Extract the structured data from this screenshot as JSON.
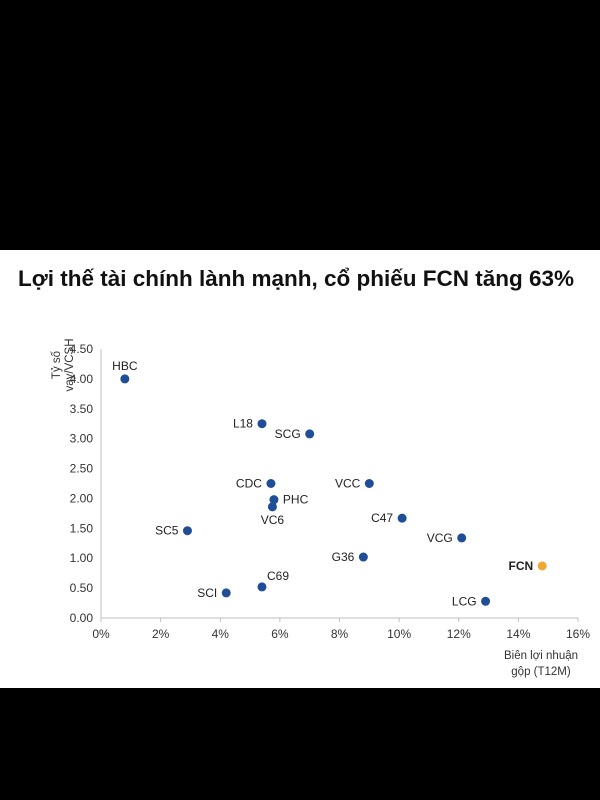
{
  "title": "Lợi thế tài chính lành mạnh, cổ phiếu FCN tăng 63%",
  "colors": {
    "point": "#1f4e97",
    "highlight": "#f0a830",
    "grid": "#d9d9d9"
  },
  "chart_data": {
    "type": "scatter",
    "title": "Lợi thế tài chính lành mạnh, cổ phiếu FCN tăng 63%",
    "xlabel": [
      "Biên lợi nhuận",
      "gộp (T12M)"
    ],
    "ylabel": [
      "Tỷ số",
      "vay/VCSH"
    ],
    "xlim": [
      0,
      16
    ],
    "ylim": [
      0,
      4.5
    ],
    "xticks": [
      0,
      2,
      4,
      6,
      8,
      10,
      12,
      14,
      16
    ],
    "xtick_labels": [
      "0%",
      "2%",
      "4%",
      "6%",
      "8%",
      "10%",
      "12%",
      "14%",
      "16%"
    ],
    "yticks": [
      0,
      0.5,
      1,
      1.5,
      2,
      2.5,
      3,
      3.5,
      4,
      4.5
    ],
    "ytick_labels": [
      "0.00",
      "0.50",
      "1.00",
      "1.50",
      "2.00",
      "2.50",
      "3.00",
      "3.50",
      "4.00",
      "4.50"
    ],
    "grid": false,
    "points": [
      {
        "label": "HBC",
        "x": 0.8,
        "y": 4.0,
        "pos": "top"
      },
      {
        "label": "L18",
        "x": 5.4,
        "y": 3.25,
        "pos": "left"
      },
      {
        "label": "SCG",
        "x": 7.0,
        "y": 3.08,
        "pos": "left"
      },
      {
        "label": "CDC",
        "x": 5.7,
        "y": 2.25,
        "pos": "left"
      },
      {
        "label": "VCC",
        "x": 9.0,
        "y": 2.25,
        "pos": "left"
      },
      {
        "label": "PHC",
        "x": 5.8,
        "y": 1.98,
        "pos": "right"
      },
      {
        "label": "VC6",
        "x": 5.75,
        "y": 1.86,
        "pos": "bottom"
      },
      {
        "label": "C47",
        "x": 10.1,
        "y": 1.67,
        "pos": "left"
      },
      {
        "label": "SC5",
        "x": 2.9,
        "y": 1.46,
        "pos": "left"
      },
      {
        "label": "VCG",
        "x": 12.1,
        "y": 1.34,
        "pos": "left"
      },
      {
        "label": "G36",
        "x": 8.8,
        "y": 1.02,
        "pos": "left"
      },
      {
        "label": "FCN",
        "x": 14.8,
        "y": 0.87,
        "pos": "left",
        "highlight": true
      },
      {
        "label": "C69",
        "x": 5.4,
        "y": 0.52,
        "pos": "top-right"
      },
      {
        "label": "SCI",
        "x": 4.2,
        "y": 0.42,
        "pos": "left"
      },
      {
        "label": "LCG",
        "x": 12.9,
        "y": 0.28,
        "pos": "left"
      }
    ]
  }
}
